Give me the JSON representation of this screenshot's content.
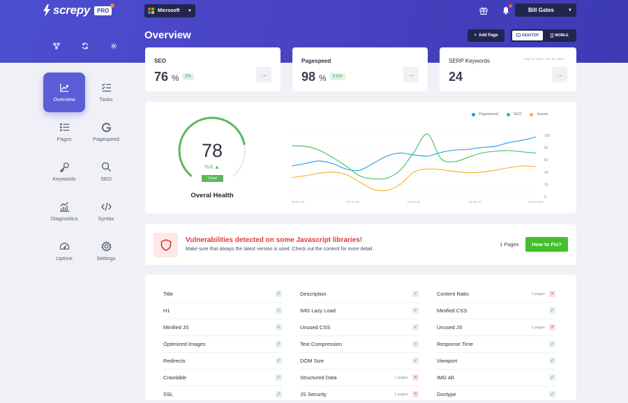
{
  "app": {
    "logo_text": "screpy",
    "badge": "PRO"
  },
  "header": {
    "domain": "Microsoft",
    "user": "Bill Gates",
    "page_title": "Overview",
    "add_page": "Add Page",
    "device_desktop": "DESKTOP",
    "device_mobile": "MOBILE",
    "tool_icons": [
      "sitemap-icon",
      "refresh-icon",
      "settings-icon"
    ]
  },
  "sidebar": {
    "items": [
      {
        "label": "Overview",
        "icon": "chart-line-icon",
        "active": true
      },
      {
        "label": "Tasks",
        "icon": "tasks-icon",
        "active": false
      },
      {
        "label": "Pages",
        "icon": "list-icon",
        "active": false
      },
      {
        "label": "Pagespeed",
        "icon": "google-icon",
        "active": false
      },
      {
        "label": "Keywords",
        "icon": "key-icon",
        "active": false
      },
      {
        "label": "SEO",
        "icon": "search-icon",
        "active": false
      },
      {
        "label": "Diagnostics",
        "icon": "diagnostics-icon",
        "active": false
      },
      {
        "label": "Syntax",
        "icon": "code-icon",
        "active": false
      },
      {
        "label": "Uptime",
        "icon": "speedometer-icon",
        "active": false
      },
      {
        "label": "Settings",
        "icon": "gear-icon",
        "active": false
      }
    ]
  },
  "stats": {
    "seo": {
      "label": "SEO",
      "value": "76",
      "unit": "%",
      "badge": "2%"
    },
    "pagespeed": {
      "label": "Pagespeed",
      "value": "98",
      "unit": "%",
      "badge": "0.8%"
    },
    "serp": {
      "label": "SERP Keywords",
      "value": "24",
      "date_range": "Sep 20, 2020 - Oct 22, 2020"
    }
  },
  "health": {
    "value": "78",
    "delta": "%4",
    "status": "Good",
    "title": "Overal Health",
    "fraction": 0.78
  },
  "chart_data": {
    "type": "line",
    "x_labels": [
      "03-04-12",
      "03-11-12",
      "03-18-12",
      "03-25-12",
      "3 days ago"
    ],
    "y_ticks": [
      0,
      20,
      40,
      60,
      80,
      100
    ],
    "ylim": [
      0,
      100
    ],
    "series": [
      {
        "name": "Pagespeed",
        "color": "#1e9be9",
        "values": [
          50,
          54,
          58,
          54,
          45,
          43,
          54,
          66,
          71,
          68,
          66,
          72,
          76,
          77,
          80,
          82,
          88,
          92,
          97
        ]
      },
      {
        "name": "SEO",
        "color": "#3fbf5b",
        "values": [
          83,
          82,
          76,
          64,
          50,
          34,
          29,
          30,
          43,
          72,
          102,
          62,
          57,
          64,
          71,
          74,
          75,
          73,
          71
        ]
      },
      {
        "name": "Issues",
        "color": "#f6b12d",
        "values": [
          31,
          34,
          38,
          40,
          36,
          24,
          12,
          10,
          20,
          40,
          45,
          44,
          41,
          39,
          40,
          43,
          47,
          50,
          49
        ]
      }
    ]
  },
  "alert": {
    "title": "Vulnerabilities detected on some Javascript libraries!",
    "desc": "Make sure that always the latest version is used. Check out the content for more detail.",
    "pages": "1 Pages",
    "button": "How to Fix?"
  },
  "checks": [
    [
      {
        "label": "Title",
        "ok": true
      },
      {
        "label": "H1",
        "ok": true
      },
      {
        "label": "Minified JS",
        "ok": true
      },
      {
        "label": "Optimized Images",
        "ok": true
      },
      {
        "label": "Redirects",
        "ok": true
      },
      {
        "label": "Crawlable",
        "ok": true
      },
      {
        "label": "SSL",
        "ok": true
      }
    ],
    [
      {
        "label": "Description",
        "ok": true
      },
      {
        "label": "IMG Lazy Load",
        "ok": true
      },
      {
        "label": "Unused CSS",
        "ok": true
      },
      {
        "label": "Text Compression",
        "ok": true
      },
      {
        "label": "DOM Size",
        "ok": true
      },
      {
        "label": "Structured Data",
        "ok": false,
        "pages": "1 pages"
      },
      {
        "label": "JS Security",
        "ok": false,
        "pages": "1 pages"
      }
    ],
    [
      {
        "label": "Content Ratio",
        "ok": false,
        "pages": "1 pages"
      },
      {
        "label": "Minified CSS",
        "ok": true
      },
      {
        "label": "Unused JS",
        "ok": false,
        "pages": "1 pages"
      },
      {
        "label": "Response Time",
        "ok": true
      },
      {
        "label": "Viewport",
        "ok": true
      },
      {
        "label": "IMG Alt",
        "ok": true
      },
      {
        "label": "Doctype",
        "ok": true
      }
    ]
  ]
}
